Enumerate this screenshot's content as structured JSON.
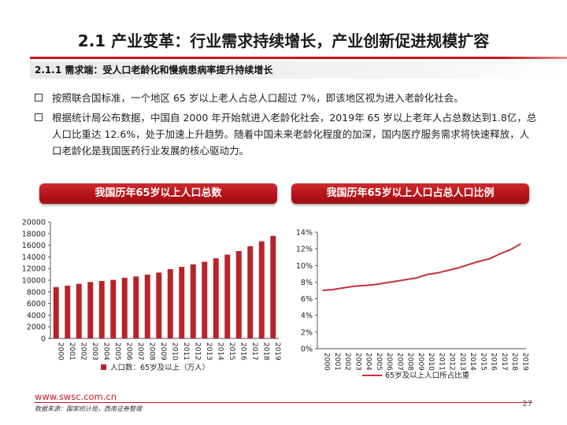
{
  "title": "2.1 产业变革：行业需求持续增长，产业创新促进规模扩容",
  "subhead": "2.1.1 需求端：受人口老龄化和慢病患病率提升持续增长",
  "bullets": [
    "按照联合国标准，一个地区 65 岁以上老人占总人口超过 7%，即该地区视为进入老龄化社会。",
    "根据统计局公布数据，中国自 2000 年开始就进入老龄化社会，2019年 65 岁以上老年人占总数达到1.8亿，总人口比重达 12.6%，处于加速上升趋势。随着中国未来老龄化程度的加深，国内医疗服务需求将快速释放，人口老龄化是我国医药行业发展的核心驱动力。"
  ],
  "colors": {
    "accent": "#c4181e",
    "bar": "#b8232b",
    "line": "#c8303a"
  },
  "chart_data": [
    {
      "type": "bar",
      "title": "我国历年65岁以上人口总数",
      "categories": [
        "2000",
        "2001",
        "2002",
        "2003",
        "2004",
        "2005",
        "2006",
        "2007",
        "2008",
        "2009",
        "2010",
        "2011",
        "2012",
        "2013",
        "2014",
        "2015",
        "2016",
        "2017",
        "2018",
        "2019"
      ],
      "series": [
        {
          "name": "人口数：65岁及以上（万人）",
          "values": [
            8821,
            9062,
            9377,
            9692,
            9857,
            10055,
            10419,
            10636,
            10956,
            11307,
            11894,
            12288,
            12714,
            13161,
            13755,
            14386,
            15003,
            15831,
            16658,
            17603
          ]
        }
      ],
      "ylim": [
        0,
        20000
      ],
      "yticks": [
        0,
        2000,
        4000,
        6000,
        8000,
        10000,
        12000,
        14000,
        16000,
        18000,
        20000
      ],
      "legend": "bottom"
    },
    {
      "type": "line",
      "title": "我国历年65岁以上人口占总人口比例",
      "categories": [
        "2000",
        "2001",
        "2002",
        "2003",
        "2004",
        "2005",
        "2006",
        "2007",
        "2008",
        "2009",
        "2010",
        "2011",
        "2012",
        "2013",
        "2014",
        "2015",
        "2016",
        "2017",
        "2018",
        "2019"
      ],
      "series": [
        {
          "name": "65岁及以上人口所占比重",
          "values": [
            7.0,
            7.1,
            7.3,
            7.5,
            7.6,
            7.7,
            7.9,
            8.1,
            8.3,
            8.5,
            8.9,
            9.1,
            9.4,
            9.7,
            10.1,
            10.5,
            10.8,
            11.4,
            11.9,
            12.6
          ]
        }
      ],
      "ylim": [
        0,
        14
      ],
      "yticks": [
        "0%",
        "2%",
        "4%",
        "6%",
        "8%",
        "10%",
        "12%",
        "14%"
      ],
      "legend": "bottom"
    }
  ],
  "footer": {
    "url": "www.swsc.com.cn",
    "source": "数据来源：国家统计局，西南证券整理",
    "page": "27"
  }
}
